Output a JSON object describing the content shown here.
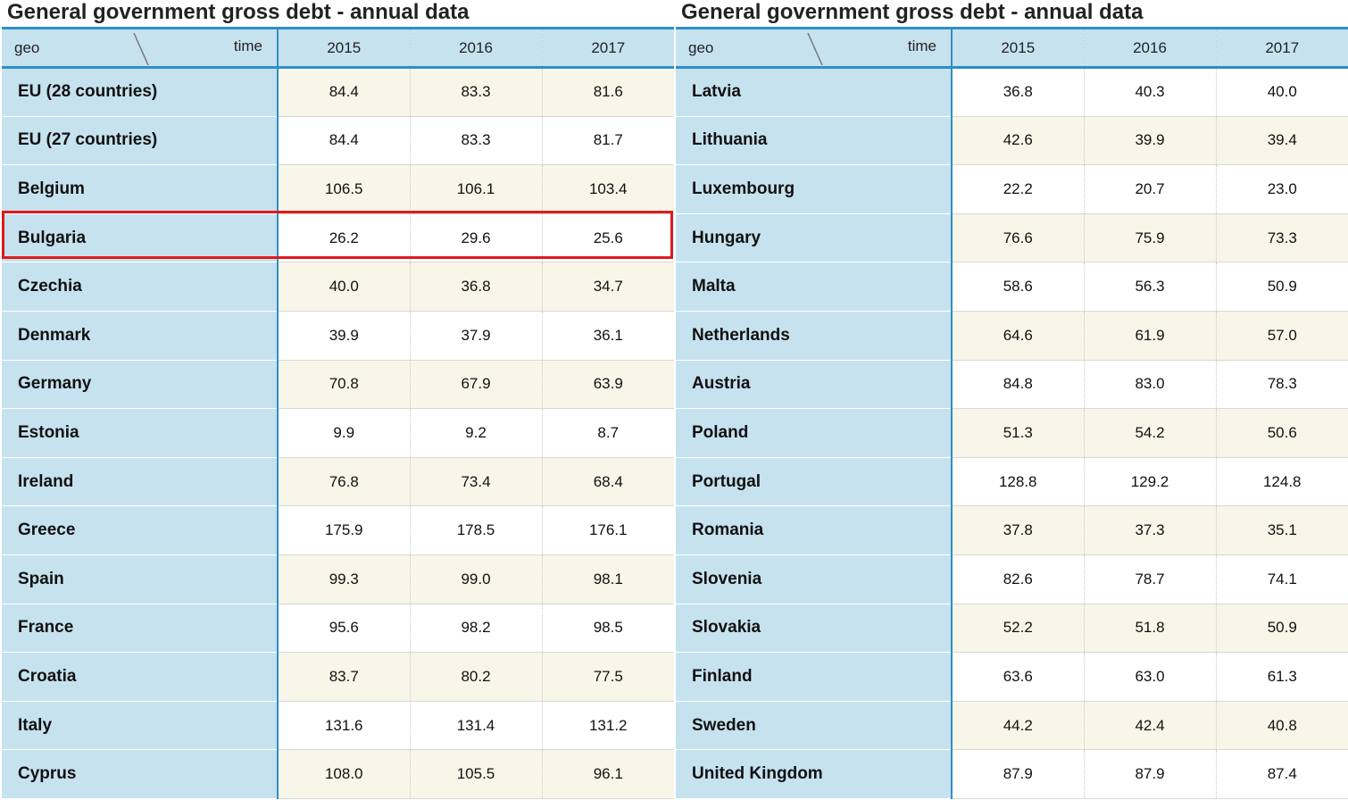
{
  "title": "General government gross debt - annual data",
  "header": {
    "geo_label": "geo",
    "time_label": "time"
  },
  "colors": {
    "highlight": "#e0191c",
    "header_bg": "#c6e2ef",
    "accent_line": "#2e8fc4",
    "stripe": "#f8f6e8"
  },
  "highlighted_row": "Bulgaria",
  "chart_data": [
    {
      "type": "table",
      "title": "General government gross debt - annual data",
      "columns": [
        "2015",
        "2016",
        "2017"
      ],
      "rows": [
        {
          "geo": "EU (28 countries)",
          "values": [
            "84.4",
            "83.3",
            "81.6"
          ]
        },
        {
          "geo": "EU (27 countries)",
          "values": [
            "84.4",
            "83.3",
            "81.7"
          ]
        },
        {
          "geo": "Belgium",
          "values": [
            "106.5",
            "106.1",
            "103.4"
          ]
        },
        {
          "geo": "Bulgaria",
          "values": [
            "26.2",
            "29.6",
            "25.6"
          ]
        },
        {
          "geo": "Czechia",
          "values": [
            "40.0",
            "36.8",
            "34.7"
          ]
        },
        {
          "geo": "Denmark",
          "values": [
            "39.9",
            "37.9",
            "36.1"
          ]
        },
        {
          "geo": "Germany",
          "values": [
            "70.8",
            "67.9",
            "63.9"
          ]
        },
        {
          "geo": "Estonia",
          "values": [
            "9.9",
            "9.2",
            "8.7"
          ]
        },
        {
          "geo": "Ireland",
          "values": [
            "76.8",
            "73.4",
            "68.4"
          ]
        },
        {
          "geo": "Greece",
          "values": [
            "175.9",
            "178.5",
            "176.1"
          ]
        },
        {
          "geo": "Spain",
          "values": [
            "99.3",
            "99.0",
            "98.1"
          ]
        },
        {
          "geo": "France",
          "values": [
            "95.6",
            "98.2",
            "98.5"
          ]
        },
        {
          "geo": "Croatia",
          "values": [
            "83.7",
            "80.2",
            "77.5"
          ]
        },
        {
          "geo": "Italy",
          "values": [
            "131.6",
            "131.4",
            "131.2"
          ]
        },
        {
          "geo": "Cyprus",
          "values": [
            "108.0",
            "105.5",
            "96.1"
          ]
        }
      ]
    },
    {
      "type": "table",
      "title": "General government gross debt - annual data",
      "columns": [
        "2015",
        "2016",
        "2017"
      ],
      "rows": [
        {
          "geo": "Latvia",
          "values": [
            "36.8",
            "40.3",
            "40.0"
          ]
        },
        {
          "geo": "Lithuania",
          "values": [
            "42.6",
            "39.9",
            "39.4"
          ]
        },
        {
          "geo": "Luxembourg",
          "values": [
            "22.2",
            "20.7",
            "23.0"
          ]
        },
        {
          "geo": "Hungary",
          "values": [
            "76.6",
            "75.9",
            "73.3"
          ]
        },
        {
          "geo": "Malta",
          "values": [
            "58.6",
            "56.3",
            "50.9"
          ]
        },
        {
          "geo": "Netherlands",
          "values": [
            "64.6",
            "61.9",
            "57.0"
          ]
        },
        {
          "geo": "Austria",
          "values": [
            "84.8",
            "83.0",
            "78.3"
          ]
        },
        {
          "geo": "Poland",
          "values": [
            "51.3",
            "54.2",
            "50.6"
          ]
        },
        {
          "geo": "Portugal",
          "values": [
            "128.8",
            "129.2",
            "124.8"
          ]
        },
        {
          "geo": "Romania",
          "values": [
            "37.8",
            "37.3",
            "35.1"
          ]
        },
        {
          "geo": "Slovenia",
          "values": [
            "82.6",
            "78.7",
            "74.1"
          ]
        },
        {
          "geo": "Slovakia",
          "values": [
            "52.2",
            "51.8",
            "50.9"
          ]
        },
        {
          "geo": "Finland",
          "values": [
            "63.6",
            "63.0",
            "61.3"
          ]
        },
        {
          "geo": "Sweden",
          "values": [
            "44.2",
            "42.4",
            "40.8"
          ]
        },
        {
          "geo": "United Kingdom",
          "values": [
            "87.9",
            "87.9",
            "87.4"
          ]
        }
      ]
    }
  ]
}
